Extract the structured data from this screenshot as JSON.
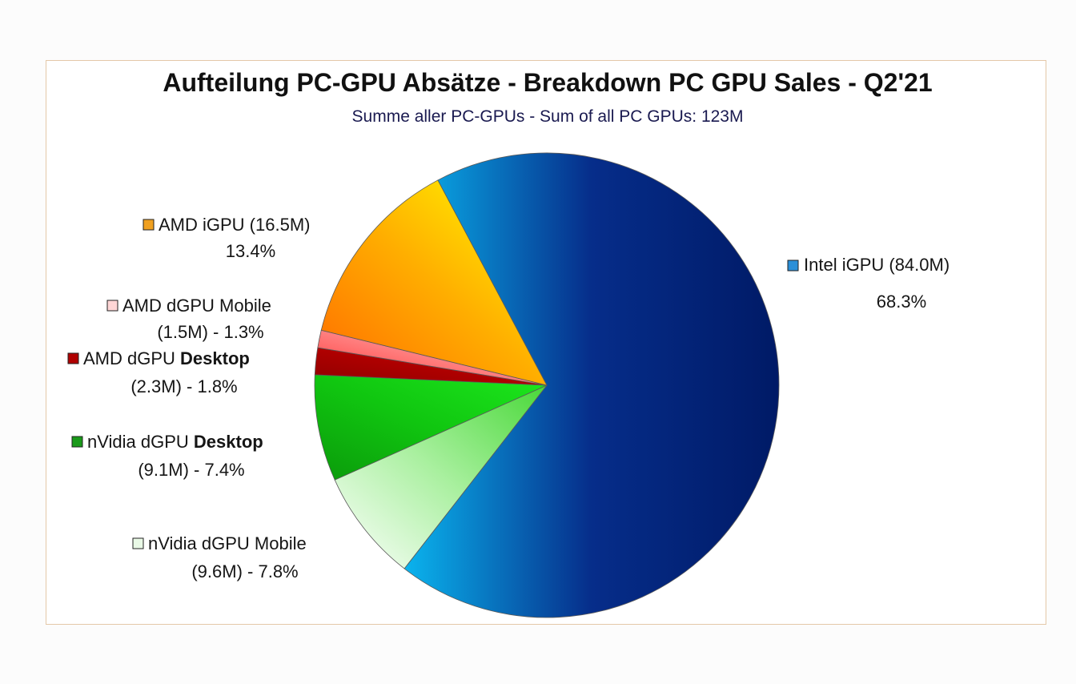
{
  "chart_data": {
    "type": "pie",
    "title": "Aufteilung PC-GPU Absätze - Breakdown PC GPU Sales - Q2'21",
    "subtitle": "Summe aller PC-GPUs - Sum of all PC GPUs: 123M",
    "slices": [
      {
        "label": "Intel iGPU",
        "line1": "Intel iGPU (84.0M)",
        "line2": "68.3%",
        "value": 84.0,
        "percent": 68.3,
        "colors": [
          "#0ab4ee",
          "#062d8a",
          "#001a66"
        ],
        "swatch": "#2b8fd8"
      },
      {
        "label": "nVidia dGPU Mobile",
        "line1": "nVidia dGPU Mobile",
        "line2": "(9.6M) - 7.8%",
        "value": 9.6,
        "percent": 7.8,
        "colors": [
          "#ffffff",
          "#aaf0a0",
          "#48d838"
        ],
        "swatch": "#e9f9e6"
      },
      {
        "label": "nVidia dGPU Desktop",
        "line1_prefix": "nVidia dGPU ",
        "line1_bold": "Desktop",
        "line2": "(9.1M) - 7.4%",
        "value": 9.1,
        "percent": 7.4,
        "colors": [
          "#0b9a0b",
          "#10c610",
          "#1de81d"
        ],
        "swatch": "#1a9a1a"
      },
      {
        "label": "AMD dGPU Desktop",
        "line1_prefix": "AMD dGPU ",
        "line1_bold": "Desktop",
        "line2": "(2.3M) - 1.8%",
        "value": 2.3,
        "percent": 1.8,
        "colors": [
          "#8e0000",
          "#b00000",
          "#a00000"
        ],
        "swatch": "#b00000"
      },
      {
        "label": "AMD dGPU Mobile",
        "line1": "AMD dGPU Mobile",
        "line2": "(1.5M) - 1.3%",
        "value": 1.5,
        "percent": 1.3,
        "colors": [
          "#ff3030",
          "#ff8080",
          "#ffd0d0"
        ],
        "swatch": "#ffd6d6"
      },
      {
        "label": "AMD iGPU",
        "line1": "AMD iGPU (16.5M)",
        "line2": "13.4%",
        "value": 16.5,
        "percent": 13.4,
        "colors": [
          "#ff6a00",
          "#ffae00",
          "#ffff00"
        ],
        "swatch": "#f0a020"
      }
    ]
  }
}
